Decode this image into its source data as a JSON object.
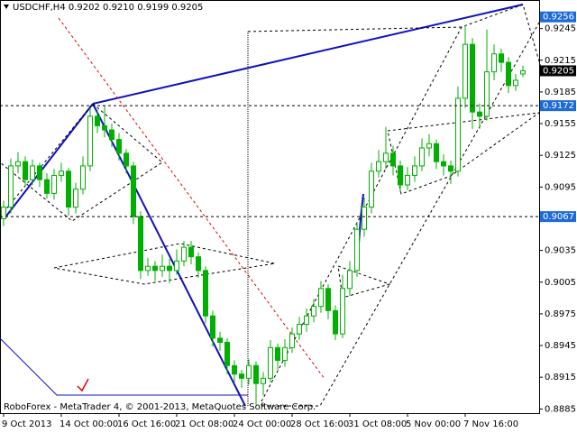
{
  "chart_data": {
    "type": "candlestick",
    "title": "USDCHF,H4  0.9202 0.9210 0.9199 0.9205",
    "footer": "RoboForex - MetaTrader 4, © 2001-2013, MetaQuotes Software Corp.",
    "open": [
      0.9065,
      0.9076,
      0.9115,
      0.9119,
      0.9102,
      0.9115,
      0.9102,
      0.9089,
      0.9106,
      0.911,
      0.9076,
      0.9093,
      0.9115,
      0.9162,
      0.9153,
      0.9149,
      0.914,
      0.9127,
      0.9115,
      0.9067,
      0.9016,
      0.902,
      0.9016,
      0.902,
      0.9016,
      0.9025,
      0.9038,
      0.9029,
      0.9016,
      0.8973,
      0.8952,
      0.8948,
      0.8926,
      0.8918,
      0.8914,
      0.8926,
      0.8909,
      0.8914,
      0.8943,
      0.8931,
      0.8943,
      0.8956,
      0.8965,
      0.8973,
      0.8982,
      0.8999,
      0.8978,
      0.8956,
      0.8999,
      0.9016,
      0.9055,
      0.9076,
      0.911,
      0.9119,
      0.9127,
      0.9115,
      0.9097,
      0.9106,
      0.9115,
      0.9132,
      0.9136,
      0.9119,
      0.9115,
      0.911,
      0.9179,
      0.923,
      0.9166,
      0.9162,
      0.9204,
      0.9221,
      0.9213,
      0.9191,
      0.9202
    ],
    "high": [
      0.9082,
      0.9122,
      0.9128,
      0.9124,
      0.9121,
      0.9118,
      0.9108,
      0.9112,
      0.9118,
      0.9113,
      0.9099,
      0.9124,
      0.917,
      0.9168,
      0.9172,
      0.9155,
      0.9146,
      0.9131,
      0.9119,
      0.9072,
      0.9028,
      0.9025,
      0.9031,
      0.9027,
      0.9036,
      0.9044,
      0.9044,
      0.9033,
      0.902,
      0.8978,
      0.8958,
      0.8952,
      0.8931,
      0.8922,
      0.8932,
      0.893,
      0.892,
      0.895,
      0.8947,
      0.8951,
      0.8962,
      0.8972,
      0.898,
      0.8989,
      0.9006,
      0.9003,
      0.8983,
      0.9012,
      0.9025,
      0.9062,
      0.9085,
      0.9118,
      0.913,
      0.9152,
      0.9134,
      0.912,
      0.9114,
      0.9124,
      0.9141,
      0.9145,
      0.914,
      0.9126,
      0.912,
      0.919,
      0.9248,
      0.9236,
      0.9174,
      0.9244,
      0.923,
      0.9226,
      0.9218,
      0.9202,
      0.921
    ],
    "low": [
      0.9058,
      0.907,
      0.9108,
      0.9096,
      0.9097,
      0.9095,
      0.9084,
      0.9083,
      0.91,
      0.9068,
      0.907,
      0.9088,
      0.911,
      0.9146,
      0.9142,
      0.9133,
      0.912,
      0.9108,
      0.906,
      0.9008,
      0.9011,
      0.9006,
      0.901,
      0.9004,
      0.9012,
      0.902,
      0.9022,
      0.9009,
      0.8966,
      0.8944,
      0.894,
      0.8918,
      0.891,
      0.8905,
      0.8908,
      0.8889,
      0.8898,
      0.891,
      0.8922,
      0.8925,
      0.8938,
      0.895,
      0.8958,
      0.8967,
      0.8976,
      0.897,
      0.895,
      0.8952,
      0.8992,
      0.901,
      0.9048,
      0.907,
      0.9104,
      0.9112,
      0.9106,
      0.909,
      0.9092,
      0.91,
      0.911,
      0.9124,
      0.9112,
      0.9106,
      0.9098,
      0.9105,
      0.917,
      0.915,
      0.915,
      0.9158,
      0.9196,
      0.9204,
      0.9184,
      0.9186,
      0.9199
    ],
    "close": [
      0.9076,
      0.9115,
      0.9119,
      0.9102,
      0.9115,
      0.9102,
      0.9089,
      0.9106,
      0.911,
      0.9076,
      0.9093,
      0.9115,
      0.9162,
      0.9153,
      0.9149,
      0.914,
      0.9127,
      0.9115,
      0.9067,
      0.9016,
      0.902,
      0.9016,
      0.902,
      0.9016,
      0.9025,
      0.9038,
      0.9029,
      0.9016,
      0.8973,
      0.8952,
      0.8948,
      0.8926,
      0.8918,
      0.8914,
      0.8926,
      0.8909,
      0.8914,
      0.8943,
      0.8931,
      0.8943,
      0.8956,
      0.8965,
      0.8973,
      0.8982,
      0.8999,
      0.8978,
      0.8956,
      0.8999,
      0.9016,
      0.9055,
      0.9076,
      0.911,
      0.9119,
      0.9127,
      0.9115,
      0.9097,
      0.9106,
      0.9115,
      0.9132,
      0.9136,
      0.9119,
      0.9115,
      0.911,
      0.9179,
      0.923,
      0.9166,
      0.9162,
      0.9204,
      0.9221,
      0.9213,
      0.9191,
      0.9196,
      0.9205
    ],
    "color": "#00b000",
    "ylim": [
      0.8881,
      0.9272
    ],
    "yticks": [
      0.9245,
      0.9215,
      0.9185,
      0.9155,
      0.9125,
      0.9095,
      0.9035,
      0.9005,
      0.8975,
      0.8945,
      0.8915,
      0.8885
    ],
    "xlim": [
      -0.5,
      74.25
    ],
    "xticks": [
      {
        "value": 0,
        "label": "9 Oct 2013"
      },
      {
        "value": 8,
        "label": "14 Oct 00:00"
      },
      {
        "value": 16,
        "label": "16 Oct 16:00"
      },
      {
        "value": 24,
        "label": "21 Oct 08:00"
      },
      {
        "value": 32,
        "label": "24 Oct 00:00"
      },
      {
        "value": 40,
        "label": "28 Oct 16:00"
      },
      {
        "value": 48,
        "label": "31 Oct 08:00"
      },
      {
        "value": 56,
        "label": "5 Nov 00:00"
      },
      {
        "value": 64,
        "label": "7 Nov 16:00"
      }
    ],
    "dashed_levels": [
      0.9172,
      0.9067
    ],
    "marker_levels": [
      0.9256
    ],
    "current_price": 0.9205
  }
}
